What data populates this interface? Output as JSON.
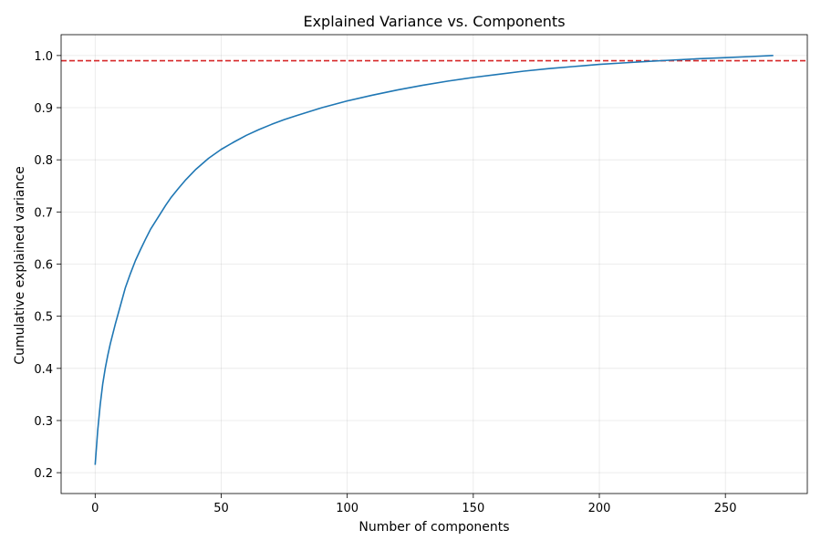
{
  "chart_data": {
    "type": "line",
    "title": "Explained Variance vs. Components",
    "xlabel": "Number of components",
    "ylabel": "Cumulative explained variance",
    "xlim": [
      -13.5,
      282.5
    ],
    "ylim": [
      0.16,
      1.04
    ],
    "xticks": [
      0,
      50,
      100,
      150,
      200,
      250
    ],
    "yticks": [
      0.2,
      0.3,
      0.4,
      0.5,
      0.6,
      0.7,
      0.8,
      0.9,
      1.0
    ],
    "ytick_labels": [
      "0.2",
      "0.3",
      "0.4",
      "0.5",
      "0.6",
      "0.7",
      "0.8",
      "0.9",
      "1.0"
    ],
    "grid": true,
    "series": [
      {
        "color": "#1f77b4",
        "x": [
          0,
          1,
          2,
          3,
          4,
          5,
          6,
          8,
          10,
          12,
          14,
          16,
          18,
          20,
          22,
          25,
          28,
          30,
          33,
          36,
          40,
          45,
          50,
          55,
          60,
          65,
          70,
          75,
          80,
          90,
          100,
          110,
          120,
          130,
          140,
          150,
          160,
          170,
          180,
          190,
          200,
          210,
          220,
          228,
          240,
          250,
          260,
          269
        ],
        "y": [
          0.215,
          0.28,
          0.33,
          0.37,
          0.4,
          0.425,
          0.447,
          0.485,
          0.52,
          0.555,
          0.582,
          0.607,
          0.628,
          0.648,
          0.667,
          0.69,
          0.713,
          0.727,
          0.745,
          0.762,
          0.782,
          0.803,
          0.82,
          0.834,
          0.847,
          0.858,
          0.868,
          0.877,
          0.885,
          0.9,
          0.913,
          0.924,
          0.934,
          0.943,
          0.951,
          0.958,
          0.964,
          0.97,
          0.975,
          0.979,
          0.983,
          0.986,
          0.989,
          0.991,
          0.994,
          0.996,
          0.998,
          1.0
        ]
      }
    ],
    "hlines": [
      {
        "y": 0.99,
        "color": "#d62728",
        "style": "dashed"
      }
    ]
  }
}
